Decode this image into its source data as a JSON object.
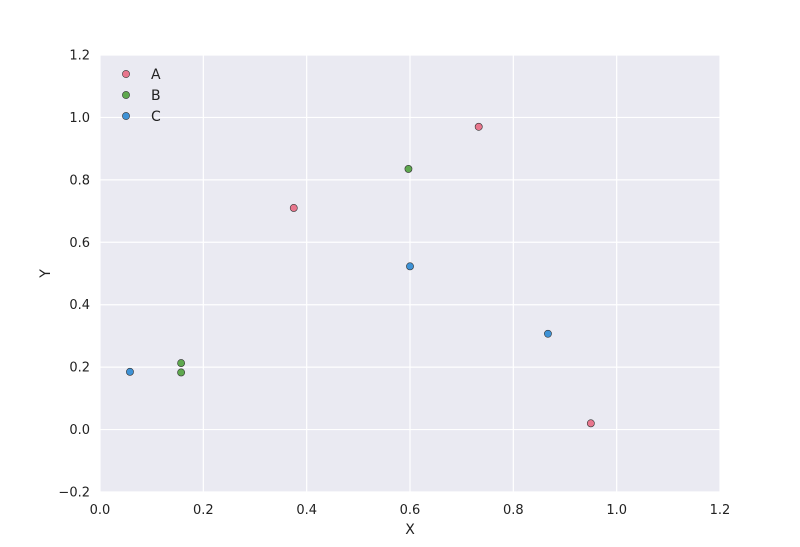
{
  "chart_data": {
    "type": "scatter",
    "title": "",
    "xlabel": "X",
    "ylabel": "Y",
    "xlim": [
      0.0,
      1.2
    ],
    "ylim": [
      -0.2,
      1.2
    ],
    "x_ticks": [
      "0.0",
      "0.2",
      "0.4",
      "0.6",
      "0.8",
      "1.0",
      "1.2"
    ],
    "y_ticks": [
      "−0.2",
      "0.0",
      "0.2",
      "0.4",
      "0.6",
      "0.8",
      "1.0",
      "1.2"
    ],
    "grid": true,
    "legend_position": "top-left",
    "background_color": "#EAEAF2",
    "series": [
      {
        "name": "A",
        "color": "#E8768D",
        "points": [
          {
            "x": 0.375,
            "y": 0.71
          },
          {
            "x": 0.733,
            "y": 0.97
          },
          {
            "x": 0.95,
            "y": 0.02
          }
        ]
      },
      {
        "name": "B",
        "color": "#5FA84F",
        "points": [
          {
            "x": 0.597,
            "y": 0.835
          },
          {
            "x": 0.157,
            "y": 0.213
          },
          {
            "x": 0.157,
            "y": 0.183
          }
        ]
      },
      {
        "name": "C",
        "color": "#3E92D6",
        "points": [
          {
            "x": 0.058,
            "y": 0.185
          },
          {
            "x": 0.6,
            "y": 0.523
          },
          {
            "x": 0.867,
            "y": 0.307
          }
        ]
      }
    ]
  }
}
